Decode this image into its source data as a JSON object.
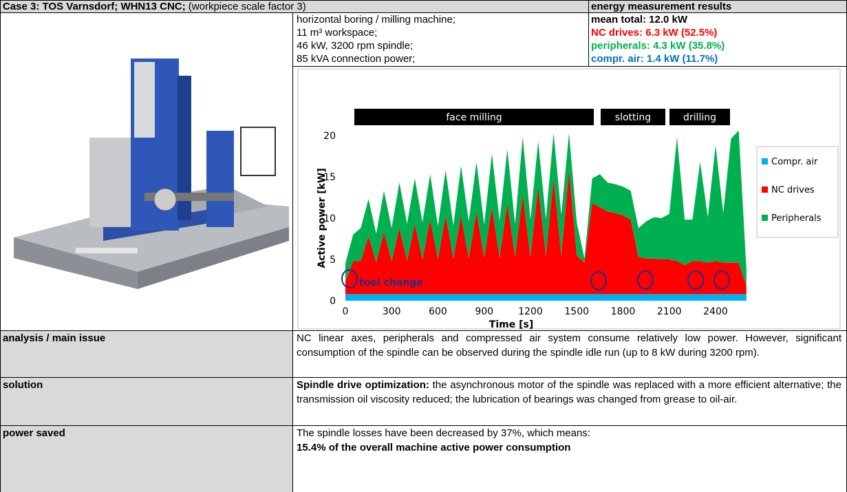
{
  "header": {
    "case": "Case 3: TOS Varnsdorf; WHN13 CNC;",
    "case_note": "(workpiece scale factor 3)",
    "results_title": "energy measurement results"
  },
  "specs": [
    "horizontal boring / milling machine;",
    "11 m³ workspace;",
    "46 kW, 3200 rpm spindle;",
    "85 kVA connection power;"
  ],
  "results": {
    "total": "mean total: 12.0 kW",
    "nc": "NC drives: 6.3 kW (52.5%)",
    "peripherals": "peripherals: 4.3 kW (35.8%)",
    "air": "compr. air: 1.4 kW (11.7%)"
  },
  "chart_data": {
    "type": "stacked-area",
    "xlabel": "Time [s]",
    "ylabel": "Active power [kW]",
    "phases": [
      "face milling",
      "slotting",
      "drilling"
    ],
    "annotation": "tool change",
    "legend": "right",
    "xlim": [
      -40,
      2650
    ],
    "ylim": [
      -1,
      21.7
    ],
    "xticks": [
      0,
      300,
      600,
      900,
      1200,
      1500,
      1800,
      2100,
      2400
    ],
    "yticks": [
      0,
      5,
      10,
      15,
      20
    ],
    "x": [
      0,
      50,
      100,
      150,
      200,
      250,
      300,
      350,
      400,
      450,
      500,
      550,
      600,
      650,
      700,
      750,
      800,
      850,
      900,
      950,
      1000,
      1050,
      1100,
      1150,
      1200,
      1250,
      1300,
      1350,
      1400,
      1450,
      1500,
      1550,
      1600,
      1650,
      1700,
      1750,
      1800,
      1850,
      1900,
      1950,
      2000,
      2050,
      2100,
      2150,
      2200,
      2250,
      2300,
      2350,
      2400,
      2450,
      2500,
      2550,
      2600
    ],
    "series": [
      {
        "name": "Compr. air",
        "color": "#00b0f0",
        "values": [
          0.8,
          0.8,
          0.8,
          0.8,
          0.8,
          0.8,
          0.8,
          0.8,
          0.8,
          0.8,
          0.8,
          0.8,
          0.8,
          0.8,
          0.8,
          0.8,
          0.8,
          0.8,
          0.8,
          0.8,
          0.8,
          0.8,
          0.8,
          0.8,
          0.8,
          0.8,
          0.8,
          0.8,
          0.8,
          0.8,
          0.8,
          0.8,
          0.8,
          0.8,
          0.8,
          0.8,
          0.8,
          0.8,
          0.8,
          0.8,
          0.8,
          0.8,
          0.8,
          0.8,
          0.8,
          0.8,
          0.8,
          0.8,
          0.8,
          0.8,
          0.8,
          0.8,
          0.8
        ]
      },
      {
        "name": "NC drives",
        "color": "#ff0000",
        "values": [
          1.5,
          4.0,
          4.0,
          7.0,
          3.8,
          7.5,
          4.0,
          8.0,
          4.0,
          8.5,
          4.2,
          9.0,
          4.2,
          9.5,
          4.3,
          9.5,
          4.3,
          10.0,
          4.4,
          10.5,
          4.4,
          11.0,
          4.5,
          12.0,
          4.5,
          13.0,
          4.6,
          14.0,
          4.6,
          15.0,
          4.7,
          3.8,
          11.0,
          10.5,
          10.0,
          9.8,
          9.5,
          9.0,
          4.5,
          4.3,
          4.3,
          4.2,
          4.2,
          4.0,
          3.5,
          4.0,
          4.0,
          3.8,
          4.0,
          3.8,
          3.8,
          3.8,
          1.0
        ]
      },
      {
        "name": "Peripherals",
        "color": "#00b050",
        "values": [
          2.2,
          3.2,
          4.0,
          4.5,
          3.5,
          5.0,
          4.0,
          5.5,
          4.5,
          5.5,
          4.5,
          5.5,
          4.0,
          5.5,
          4.0,
          6.0,
          4.5,
          6.0,
          4.0,
          6.5,
          4.5,
          6.5,
          4.0,
          7.0,
          4.5,
          5.5,
          4.5,
          5.5,
          5.0,
          4.5,
          4.0,
          0.5,
          3.0,
          4.0,
          3.5,
          3.5,
          3.5,
          3.5,
          3.5,
          4.5,
          5.0,
          5.0,
          5.5,
          15.0,
          5.5,
          5.0,
          12.0,
          5.5,
          14.0,
          6.0,
          15.0,
          16.0,
          2.0
        ]
      }
    ]
  },
  "rows": [
    {
      "label": "analysis / main issue",
      "text": "NC linear axes, peripherals and compressed air system consume relatively low power. However, significant consumption of the spindle can be observed during the spindle idle run (up to 8 kW during 3200 rpm)."
    },
    {
      "label": "solution",
      "bold": "Spindle drive optimization:",
      "text": "the asynchronous motor of the spindle was replaced with a more efficient alternative; the transmission oil viscosity reduced; the lubrication of bearings was changed from grease to oil-air."
    },
    {
      "label": "power saved",
      "text": "The spindle losses have been decreased by 37%, which means:",
      "bold": "15.4% of the overall machine active power consumption"
    }
  ]
}
